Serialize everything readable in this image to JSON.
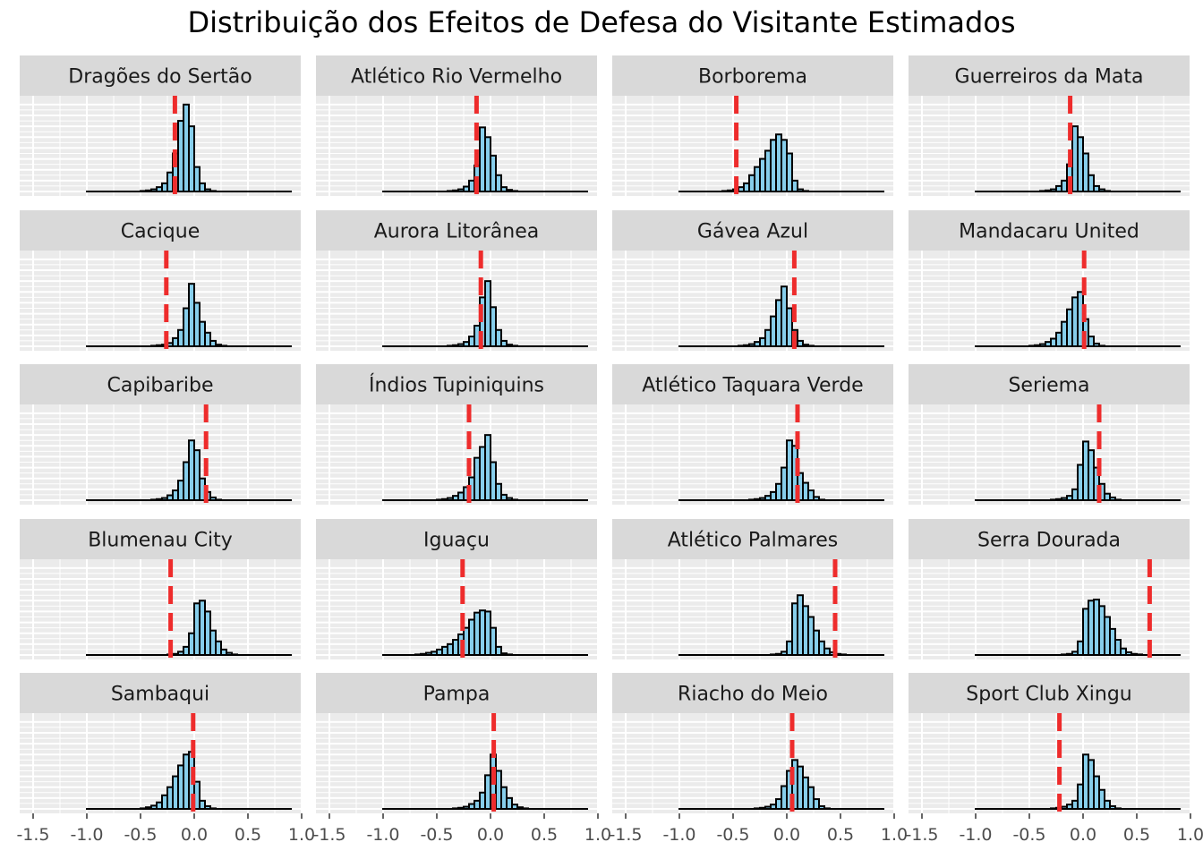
{
  "title": "Distribuição dos Efeitos de Defesa do Visitante Estimados",
  "colors": {
    "panel_bg": "#EBEBEB",
    "grid": "#FFFFFF",
    "strip_bg": "#D9D9D9",
    "bar_fill": "#87CEEB",
    "bar_stroke": "#000000",
    "vline": "#EE2C2C"
  },
  "chart_data": {
    "type": "bar",
    "title": "Distribuição dos Efeitos de Defesa do Visitante Estimados",
    "xlabel": "",
    "ylabel": "",
    "xlim": [
      -1.5,
      1.0
    ],
    "x_ticks": [
      -1.5,
      -1.0,
      -0.5,
      0.0,
      0.5,
      1.0
    ],
    "x_tick_labels": [
      "-1.5",
      "-1.0",
      "-0.5",
      "0.0",
      "0.5",
      "1.0"
    ],
    "bin_width": 0.05,
    "bin_left_edges": [
      -1.0,
      -0.95,
      -0.9,
      -0.85,
      -0.8,
      -0.75,
      -0.7,
      -0.65,
      -0.6,
      -0.55,
      -0.5,
      -0.45,
      -0.4,
      -0.35,
      -0.3,
      -0.25,
      -0.2,
      -0.15,
      -0.1,
      -0.05,
      0.0,
      0.05,
      0.1,
      0.15,
      0.2,
      0.25,
      0.3,
      0.35,
      0.4,
      0.45,
      0.5,
      0.55,
      0.6,
      0.65,
      0.7,
      0.75,
      0.8,
      0.85
    ],
    "grid": true,
    "facets": [
      {
        "team": "Dragões do Sertão",
        "vline": -0.18,
        "counts": [
          0,
          0,
          0,
          0,
          0,
          0,
          0,
          0,
          0,
          0,
          1,
          2,
          4,
          8,
          15,
          35,
          70,
          130,
          160,
          120,
          45,
          15,
          4,
          1,
          0,
          0,
          0,
          0,
          0,
          0,
          0,
          0,
          0,
          0,
          0,
          0,
          0,
          0
        ]
      },
      {
        "team": "Atlético Rio Vermelho",
        "vline": -0.13,
        "counts": [
          0,
          0,
          0,
          0,
          0,
          0,
          0,
          0,
          0,
          0,
          0,
          0,
          1,
          2,
          4,
          9,
          20,
          48,
          118,
          100,
          66,
          30,
          8,
          3,
          1,
          0,
          0,
          0,
          0,
          0,
          0,
          0,
          0,
          0,
          0,
          0,
          0,
          0
        ]
      },
      {
        "team": "Borborema",
        "vline": -0.47,
        "counts": [
          0,
          0,
          0,
          0,
          0,
          0,
          0,
          0,
          1,
          2,
          4,
          8,
          15,
          30,
          45,
          60,
          75,
          95,
          105,
          95,
          70,
          20,
          4,
          1,
          0,
          0,
          0,
          0,
          0,
          0,
          0,
          0,
          0,
          0,
          0,
          0,
          0,
          0
        ]
      },
      {
        "team": "Guerreiros da Mata",
        "vline": -0.12,
        "counts": [
          0,
          0,
          0,
          0,
          0,
          0,
          0,
          0,
          0,
          0,
          0,
          0,
          1,
          2,
          4,
          10,
          20,
          50,
          120,
          100,
          70,
          30,
          10,
          4,
          1,
          0,
          0,
          0,
          0,
          0,
          0,
          0,
          0,
          0,
          0,
          0,
          0,
          0
        ]
      },
      {
        "team": "Cacique",
        "vline": -0.26,
        "counts": [
          0,
          0,
          0,
          0,
          0,
          0,
          0,
          0,
          0,
          0,
          0,
          0,
          1,
          2,
          3,
          6,
          15,
          30,
          70,
          115,
          80,
          45,
          25,
          10,
          3,
          1,
          0,
          0,
          0,
          0,
          0,
          0,
          0,
          0,
          0,
          0,
          0,
          0
        ]
      },
      {
        "team": "Aurora Litorânea",
        "vline": -0.09,
        "counts": [
          0,
          0,
          0,
          0,
          0,
          0,
          0,
          0,
          0,
          0,
          0,
          0,
          1,
          2,
          4,
          8,
          18,
          38,
          90,
          120,
          72,
          30,
          10,
          3,
          1,
          0,
          0,
          0,
          0,
          0,
          0,
          0,
          0,
          0,
          0,
          0,
          0,
          0
        ]
      },
      {
        "team": "Gávea Azul",
        "vline": 0.07,
        "counts": [
          0,
          0,
          0,
          0,
          0,
          0,
          0,
          0,
          0,
          0,
          0,
          1,
          2,
          4,
          8,
          15,
          30,
          55,
          85,
          110,
          70,
          30,
          10,
          3,
          1,
          0,
          0,
          0,
          0,
          0,
          0,
          0,
          0,
          0,
          0,
          0,
          0,
          0
        ]
      },
      {
        "team": "Mandacaru United",
        "vline": 0.01,
        "counts": [
          0,
          0,
          0,
          0,
          0,
          0,
          0,
          0,
          0,
          0,
          1,
          2,
          4,
          8,
          14,
          25,
          45,
          68,
          90,
          100,
          50,
          18,
          5,
          1,
          0,
          0,
          0,
          0,
          0,
          0,
          0,
          0,
          0,
          0,
          0,
          0,
          0,
          0
        ]
      },
      {
        "team": "Capibaribe",
        "vline": 0.11,
        "counts": [
          0,
          0,
          0,
          0,
          0,
          0,
          0,
          0,
          0,
          0,
          0,
          0,
          1,
          2,
          4,
          9,
          18,
          36,
          70,
          110,
          92,
          40,
          15,
          5,
          1,
          0,
          0,
          0,
          0,
          0,
          0,
          0,
          0,
          0,
          0,
          0,
          0,
          0
        ]
      },
      {
        "team": "Índios Tupiniquins",
        "vline": -0.2,
        "counts": [
          0,
          0,
          0,
          0,
          0,
          0,
          0,
          0,
          0,
          0,
          1,
          2,
          4,
          8,
          14,
          24,
          42,
          78,
          98,
          120,
          70,
          30,
          10,
          4,
          1,
          0,
          0,
          0,
          0,
          0,
          0,
          0,
          0,
          0,
          0,
          0,
          0,
          0
        ]
      },
      {
        "team": "Atlético Taquara Verde",
        "vline": 0.1,
        "counts": [
          0,
          0,
          0,
          0,
          0,
          0,
          0,
          0,
          0,
          0,
          0,
          0,
          0,
          1,
          2,
          4,
          8,
          15,
          30,
          60,
          110,
          100,
          50,
          32,
          18,
          6,
          1,
          0,
          0,
          0,
          0,
          0,
          0,
          0,
          0,
          0,
          0,
          0
        ]
      },
      {
        "team": "Seriema",
        "vline": 0.15,
        "counts": [
          0,
          0,
          0,
          0,
          0,
          0,
          0,
          0,
          0,
          0,
          0,
          0,
          0,
          0,
          1,
          2,
          4,
          8,
          20,
          65,
          108,
          92,
          60,
          30,
          12,
          5,
          1,
          0,
          0,
          0,
          0,
          0,
          0,
          0,
          0,
          0,
          0,
          0
        ]
      },
      {
        "team": "Blumenau City",
        "vline": -0.22,
        "counts": [
          0,
          0,
          0,
          0,
          0,
          0,
          0,
          0,
          0,
          0,
          0,
          0,
          0,
          0,
          0,
          1,
          2,
          6,
          15,
          40,
          95,
          100,
          80,
          45,
          25,
          10,
          4,
          1,
          0,
          0,
          0,
          0,
          0,
          0,
          0,
          0,
          0,
          0
        ]
      },
      {
        "team": "Iguaçu",
        "vline": -0.26,
        "counts": [
          0,
          0,
          0,
          0,
          0,
          0,
          1,
          2,
          4,
          6,
          10,
          15,
          20,
          28,
          38,
          50,
          65,
          78,
          82,
          80,
          50,
          15,
          3,
          1,
          0,
          0,
          0,
          0,
          0,
          0,
          0,
          0,
          0,
          0,
          0,
          0,
          0,
          0
        ]
      },
      {
        "team": "Atlético Palmares",
        "vline": 0.45,
        "counts": [
          0,
          0,
          0,
          0,
          0,
          0,
          0,
          0,
          0,
          0,
          0,
          0,
          0,
          0,
          0,
          0,
          0,
          1,
          2,
          6,
          25,
          95,
          110,
          90,
          70,
          45,
          25,
          12,
          5,
          2,
          1,
          0,
          0,
          0,
          0,
          0,
          0,
          0
        ]
      },
      {
        "team": "Serra Dourada",
        "vline": 0.62,
        "counts": [
          0,
          0,
          0,
          0,
          0,
          0,
          0,
          0,
          0,
          0,
          0,
          0,
          0,
          0,
          0,
          0,
          1,
          2,
          6,
          25,
          85,
          100,
          102,
          90,
          70,
          48,
          28,
          12,
          5,
          2,
          1,
          0,
          0,
          0,
          0,
          0,
          0,
          0
        ]
      },
      {
        "team": "Sambaqui",
        "vline": -0.01,
        "counts": [
          0,
          0,
          0,
          0,
          0,
          0,
          0,
          0,
          0,
          0,
          1,
          3,
          6,
          12,
          25,
          40,
          60,
          80,
          100,
          105,
          50,
          15,
          5,
          1,
          0,
          0,
          0,
          0,
          0,
          0,
          0,
          0,
          0,
          0,
          0,
          0,
          0,
          0
        ]
      },
      {
        "team": "Pampa",
        "vline": 0.03,
        "counts": [
          0,
          0,
          0,
          0,
          0,
          0,
          0,
          0,
          0,
          0,
          0,
          0,
          0,
          1,
          2,
          4,
          9,
          15,
          30,
          62,
          100,
          70,
          40,
          20,
          8,
          3,
          1,
          0,
          0,
          0,
          0,
          0,
          0,
          0,
          0,
          0,
          0,
          0
        ]
      },
      {
        "team": "Riacho do Meio",
        "vline": 0.05,
        "counts": [
          0,
          0,
          0,
          0,
          0,
          0,
          0,
          0,
          0,
          0,
          0,
          0,
          0,
          0,
          1,
          2,
          4,
          8,
          18,
          42,
          70,
          90,
          78,
          58,
          40,
          18,
          5,
          1,
          0,
          0,
          0,
          0,
          0,
          0,
          0,
          0,
          0,
          0
        ]
      },
      {
        "team": "Sport Club Xingu",
        "vline": -0.22,
        "counts": [
          0,
          0,
          0,
          0,
          0,
          0,
          0,
          0,
          0,
          0,
          0,
          0,
          0,
          0,
          1,
          2,
          4,
          8,
          15,
          45,
          100,
          90,
          60,
          35,
          15,
          5,
          1,
          0,
          0,
          0,
          0,
          0,
          0,
          0,
          0,
          0,
          0,
          0
        ]
      }
    ]
  }
}
